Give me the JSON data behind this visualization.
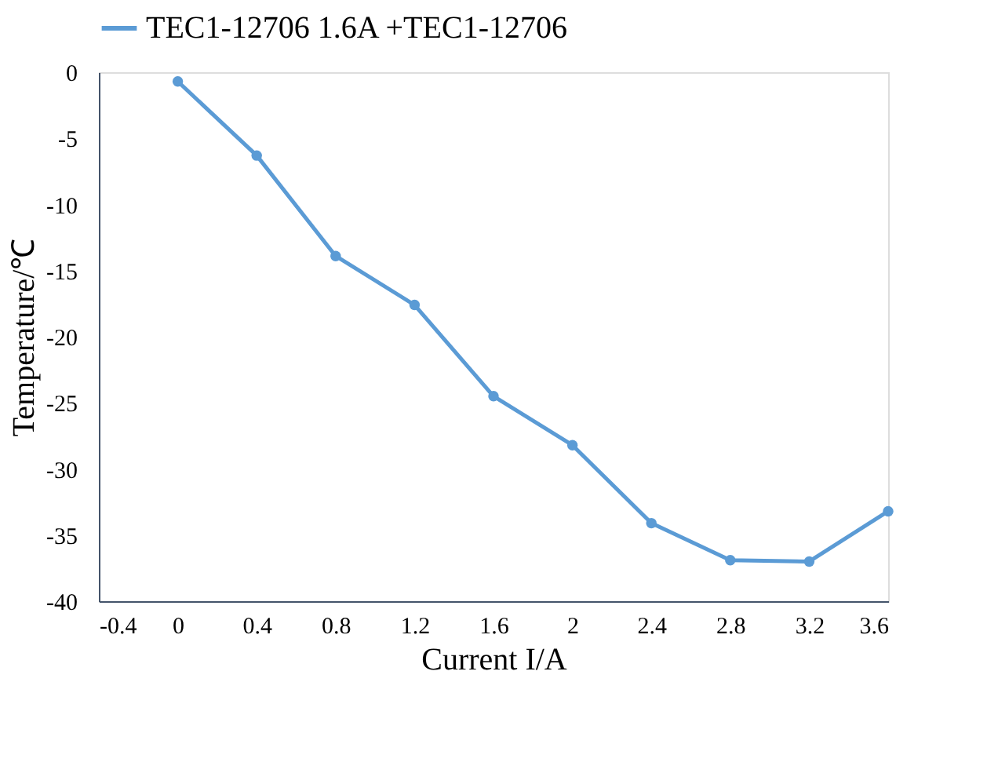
{
  "chart_data": {
    "type": "line",
    "xlabel": "Current I/A",
    "ylabel": "Temperature/℃",
    "x": [
      0,
      0.4,
      0.8,
      1.2,
      1.6,
      2,
      2.4,
      2.8,
      3.2,
      3.6
    ],
    "series": [
      {
        "name": "TEC1-12706 1.6A +TEC1-12706",
        "color": "#5b9bd5",
        "values": [
          -0.7,
          -6.3,
          -13.9,
          -17.6,
          -24.5,
          -28.2,
          -34.1,
          -36.9,
          -37.0,
          -33.2
        ]
      }
    ],
    "xlim": [
      -0.4,
      3.6
    ],
    "xticks": [
      -0.4,
      0,
      0.4,
      0.8,
      1.2,
      1.6,
      2,
      2.4,
      2.8,
      3.2,
      3.6
    ],
    "ylim": [
      -40,
      0
    ],
    "yticks": [
      -40,
      -35,
      -30,
      -25,
      -20,
      -15,
      -10,
      -5,
      0
    ],
    "grid": false,
    "legend": "top",
    "marker": "circle",
    "line_style": "solid"
  }
}
